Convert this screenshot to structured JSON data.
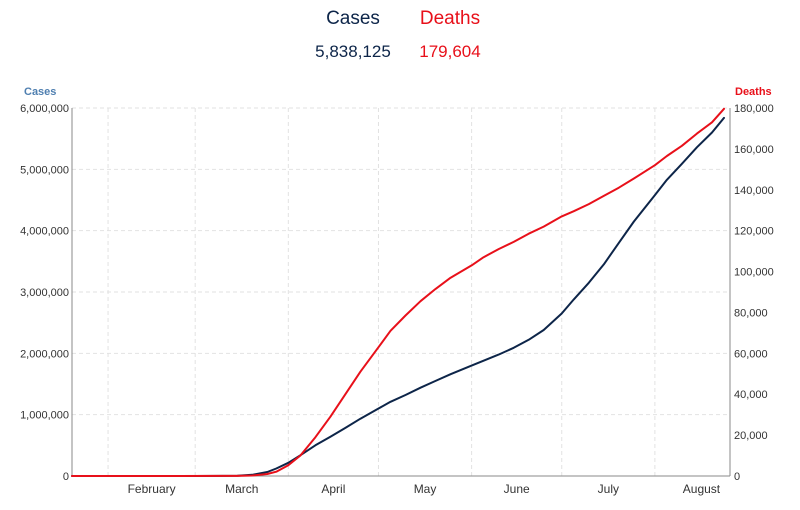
{
  "summary": {
    "cases_label": "Cases",
    "cases_value": "5,838,125",
    "deaths_label": "Deaths",
    "deaths_value": "179,604"
  },
  "colors": {
    "cases": "#0d2549",
    "deaths": "#e8101a",
    "grid": "#e2e2e2",
    "axis": "#8a8a8a",
    "left_axis_title": "#4f7fb0"
  },
  "chart_data": {
    "type": "line",
    "grid": true,
    "y_axis_left": {
      "label": "Cases",
      "range": [
        0,
        6000000
      ],
      "ticks": [
        "0",
        "1,000,000",
        "2,000,000",
        "3,000,000",
        "4,000,000",
        "5,000,000",
        "6,000,000"
      ]
    },
    "y_axis_right": {
      "label": "Deaths",
      "range": [
        0,
        180000
      ],
      "ticks": [
        "0",
        "20,000",
        "40,000",
        "60,000",
        "80,000",
        "100,000",
        "120,000",
        "140,000",
        "160,000",
        "180,000"
      ]
    },
    "x_axis": {
      "tick_labels": [
        "February",
        "March",
        "April",
        "May",
        "June",
        "July",
        "August"
      ]
    },
    "series": [
      {
        "name": "Cases",
        "axis": "left",
        "points": [
          [
            "2020-01-20",
            0
          ],
          [
            "2020-02-15",
            0
          ],
          [
            "2020-03-01",
            100
          ],
          [
            "2020-03-10",
            1000
          ],
          [
            "2020-03-15",
            3500
          ],
          [
            "2020-03-20",
            19000
          ],
          [
            "2020-03-25",
            66000
          ],
          [
            "2020-03-28",
            123000
          ],
          [
            "2020-04-01",
            215000
          ],
          [
            "2020-04-05",
            337000
          ],
          [
            "2020-04-10",
            500000
          ],
          [
            "2020-04-15",
            640000
          ],
          [
            "2020-04-20",
            785000
          ],
          [
            "2020-04-25",
            935000
          ],
          [
            "2020-05-01",
            1100000
          ],
          [
            "2020-05-05",
            1210000
          ],
          [
            "2020-05-10",
            1320000
          ],
          [
            "2020-05-15",
            1440000
          ],
          [
            "2020-05-20",
            1550000
          ],
          [
            "2020-05-25",
            1660000
          ],
          [
            "2020-06-01",
            1800000
          ],
          [
            "2020-06-05",
            1880000
          ],
          [
            "2020-06-10",
            1980000
          ],
          [
            "2020-06-15",
            2090000
          ],
          [
            "2020-06-20",
            2220000
          ],
          [
            "2020-06-25",
            2380000
          ],
          [
            "2020-07-01",
            2650000
          ],
          [
            "2020-07-05",
            2880000
          ],
          [
            "2020-07-10",
            3150000
          ],
          [
            "2020-07-15",
            3450000
          ],
          [
            "2020-07-20",
            3800000
          ],
          [
            "2020-07-25",
            4150000
          ],
          [
            "2020-08-01",
            4580000
          ],
          [
            "2020-08-05",
            4830000
          ],
          [
            "2020-08-10",
            5090000
          ],
          [
            "2020-08-15",
            5360000
          ],
          [
            "2020-08-20",
            5600000
          ],
          [
            "2020-08-24",
            5838125
          ]
        ]
      },
      {
        "name": "Deaths",
        "axis": "right",
        "points": [
          [
            "2020-01-20",
            0
          ],
          [
            "2020-02-25",
            0
          ],
          [
            "2020-03-10",
            30
          ],
          [
            "2020-03-15",
            70
          ],
          [
            "2020-03-20",
            250
          ],
          [
            "2020-03-25",
            1000
          ],
          [
            "2020-03-28",
            2100
          ],
          [
            "2020-04-01",
            5300
          ],
          [
            "2020-04-05",
            10000
          ],
          [
            "2020-04-10",
            19000
          ],
          [
            "2020-04-15",
            29000
          ],
          [
            "2020-04-20",
            40000
          ],
          [
            "2020-04-25",
            51000
          ],
          [
            "2020-05-01",
            63000
          ],
          [
            "2020-05-05",
            71000
          ],
          [
            "2020-05-10",
            78500
          ],
          [
            "2020-05-15",
            85500
          ],
          [
            "2020-05-20",
            91500
          ],
          [
            "2020-05-25",
            97000
          ],
          [
            "2020-06-01",
            103000
          ],
          [
            "2020-06-05",
            107000
          ],
          [
            "2020-06-10",
            111000
          ],
          [
            "2020-06-15",
            114500
          ],
          [
            "2020-06-20",
            118500
          ],
          [
            "2020-06-25",
            122000
          ],
          [
            "2020-07-01",
            127000
          ],
          [
            "2020-07-05",
            129500
          ],
          [
            "2020-07-10",
            133000
          ],
          [
            "2020-07-15",
            137000
          ],
          [
            "2020-07-20",
            141000
          ],
          [
            "2020-07-25",
            145500
          ],
          [
            "2020-08-01",
            152000
          ],
          [
            "2020-08-05",
            156500
          ],
          [
            "2020-08-10",
            161500
          ],
          [
            "2020-08-15",
            167500
          ],
          [
            "2020-08-20",
            173000
          ],
          [
            "2020-08-24",
            179604
          ]
        ]
      }
    ]
  }
}
